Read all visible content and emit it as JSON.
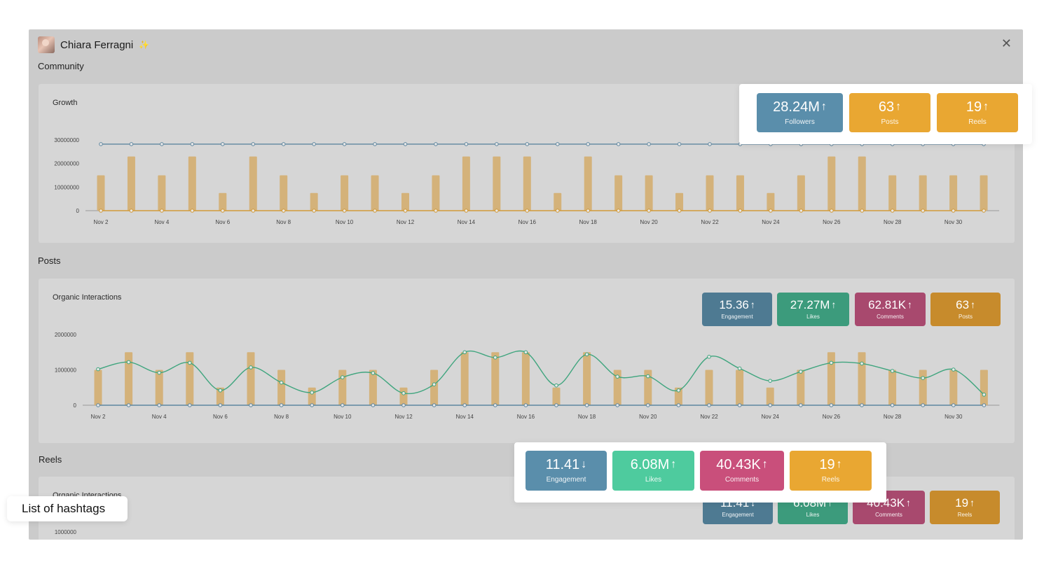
{
  "profile": {
    "name": "Chiara Ferragni",
    "verified_icon": "sparkle-icon"
  },
  "window": {
    "close_icon": "close-icon"
  },
  "sections": {
    "community": "Community",
    "posts": "Posts",
    "reels": "Reels"
  },
  "cards": {
    "growth_title": "Growth",
    "posts_title": "Organic Interactions",
    "reels_title": "Organic Interactions"
  },
  "colors": {
    "blue": "#5a8eab",
    "orange": "#e9a732",
    "green": "#4ecb9e",
    "pink": "#c94f7b",
    "blue_dim": "#4e7a92",
    "orange_dim": "#c78b2c",
    "green_dim": "#3c9b7c",
    "pink_dim": "#a8496e",
    "bar": "#d4b27a",
    "line_green": "#3fa57e",
    "line_blue": "#5f87a0",
    "line_orange": "#d29a38"
  },
  "community_stats": [
    {
      "value": "28.24M",
      "trend": "up",
      "label": "Followers",
      "color": "blue"
    },
    {
      "value": "63",
      "trend": "up",
      "label": "Posts",
      "color": "orange"
    },
    {
      "value": "19",
      "trend": "up",
      "label": "Reels",
      "color": "orange"
    }
  ],
  "posts_stats": [
    {
      "value": "15.36",
      "trend": "up",
      "label": "Engagement",
      "color": "blue_dim"
    },
    {
      "value": "27.27M",
      "trend": "up",
      "label": "Likes",
      "color": "green_dim"
    },
    {
      "value": "62.81K",
      "trend": "up",
      "label": "Comments",
      "color": "pink_dim"
    },
    {
      "value": "63",
      "trend": "up",
      "label": "Posts",
      "color": "orange_dim"
    }
  ],
  "reels_stats_popup": [
    {
      "value": "11.41",
      "trend": "down",
      "label": "Engagement",
      "color": "blue"
    },
    {
      "value": "6.08M",
      "trend": "up",
      "label": "Likes",
      "color": "green"
    },
    {
      "value": "40.43K",
      "trend": "up",
      "label": "Comments",
      "color": "pink"
    },
    {
      "value": "19",
      "trend": "up",
      "label": "Reels",
      "color": "orange"
    }
  ],
  "reels_stats_dim": [
    {
      "value": "11.41",
      "trend": "down",
      "label": "Engagement",
      "color": "blue_dim"
    },
    {
      "value": "6.08M",
      "trend": "up",
      "label": "Likes",
      "color": "green_dim"
    },
    {
      "value": "40.43K",
      "trend": "up",
      "label": "Comments",
      "color": "pink_dim"
    },
    {
      "value": "19",
      "trend": "up",
      "label": "Reels",
      "color": "orange_dim"
    }
  ],
  "hashtags_button": "List of hashtags",
  "chart_data": [
    {
      "type": "bar",
      "title": "Growth",
      "x_tick_labels": [
        "Nov 2",
        "Nov 4",
        "Nov 6",
        "Nov 8",
        "Nov 10",
        "Nov 12",
        "Nov 14",
        "Nov 16",
        "Nov 18",
        "Nov 20",
        "Nov 22",
        "Nov 24",
        "Nov 26",
        "Nov 28",
        "Nov 30"
      ],
      "y_ticks": [
        "0",
        "10000000",
        "20000000",
        "30000000"
      ],
      "ylim": [
        0,
        30000000
      ],
      "categories_count": 30,
      "series": [
        {
          "type": "bar",
          "values": [
            15000000,
            23000000,
            15000000,
            23000000,
            7500000,
            23000000,
            15000000,
            7500000,
            15000000,
            15000000,
            7500000,
            15000000,
            23000000,
            23000000,
            23000000,
            7500000,
            23000000,
            15000000,
            15000000,
            7500000,
            15000000,
            15000000,
            7500000,
            15000000,
            23000000,
            23000000,
            15000000,
            15000000,
            15000000,
            15000000
          ]
        },
        {
          "type": "line",
          "color": "line_blue",
          "values": [
            28240000,
            28240000,
            28240000,
            28240000,
            28240000,
            28240000,
            28240000,
            28240000,
            28240000,
            28240000,
            28240000,
            28240000,
            28240000,
            28240000,
            28240000,
            28240000,
            28240000,
            28240000,
            28240000,
            28240000,
            28240000,
            28240000,
            28240000,
            28240000,
            28240000,
            28240000,
            28240000,
            28240000,
            28240000,
            28240000
          ]
        },
        {
          "type": "line",
          "color": "line_orange",
          "values": [
            0,
            0,
            0,
            0,
            0,
            0,
            0,
            0,
            0,
            0,
            0,
            0,
            0,
            0,
            0,
            0,
            0,
            0,
            0,
            0,
            0,
            0,
            0,
            0,
            0,
            0,
            0,
            0,
            0,
            0
          ]
        }
      ],
      "grid": false
    },
    {
      "type": "bar",
      "title": "Organic Interactions",
      "x_tick_labels": [
        "Nov 2",
        "Nov 4",
        "Nov 6",
        "Nov 8",
        "Nov 10",
        "Nov 12",
        "Nov 14",
        "Nov 16",
        "Nov 18",
        "Nov 20",
        "Nov 22",
        "Nov 24",
        "Nov 26",
        "Nov 28",
        "Nov 30"
      ],
      "y_ticks": [
        "0",
        "1000000",
        "2000000"
      ],
      "ylim": [
        0,
        2000000
      ],
      "categories_count": 30,
      "series": [
        {
          "type": "bar",
          "values": [
            1000000,
            1500000,
            1000000,
            1500000,
            500000,
            1500000,
            1000000,
            500000,
            1000000,
            1000000,
            500000,
            1000000,
            1500000,
            1500000,
            1500000,
            500000,
            1500000,
            1000000,
            1000000,
            500000,
            1000000,
            1000000,
            500000,
            1000000,
            1500000,
            1500000,
            1000000,
            1000000,
            1000000,
            1000000
          ]
        },
        {
          "type": "line",
          "color": "line_green",
          "values": [
            1020000,
            1220000,
            920000,
            1200000,
            420000,
            1070000,
            640000,
            360000,
            790000,
            910000,
            340000,
            590000,
            1500000,
            1350000,
            1500000,
            560000,
            1440000,
            810000,
            820000,
            420000,
            1370000,
            1040000,
            690000,
            950000,
            1200000,
            1180000,
            970000,
            770000,
            1010000,
            300000
          ]
        },
        {
          "type": "line",
          "color": "line_blue",
          "values": [
            0,
            0,
            0,
            0,
            0,
            0,
            0,
            0,
            0,
            0,
            0,
            0,
            0,
            0,
            0,
            0,
            0,
            0,
            0,
            0,
            0,
            0,
            0,
            0,
            0,
            0,
            0,
            0,
            0,
            0
          ]
        }
      ],
      "grid": false
    },
    {
      "type": "line",
      "title": "Organic Interactions",
      "y_ticks": [
        "1000000"
      ]
    }
  ]
}
